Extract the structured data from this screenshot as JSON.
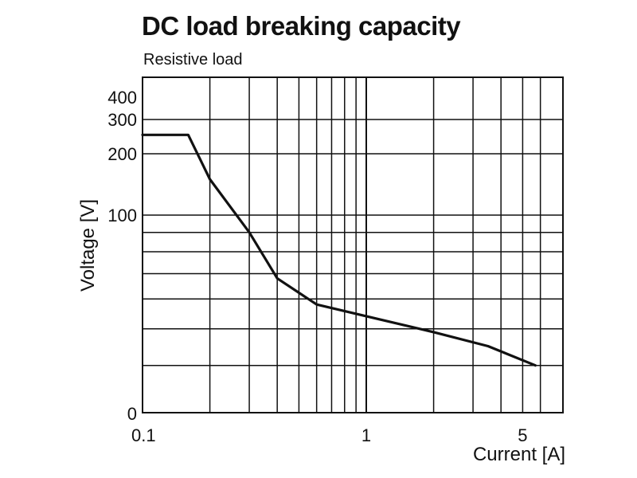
{
  "chart_data": {
    "type": "line",
    "title": "DC load breaking capacity",
    "subtitle": "Resistive load",
    "xlabel": "Current [A]",
    "ylabel": "Voltage [V]",
    "x_scale": "log",
    "xlim": [
      0.1,
      6.5
    ],
    "x_ticks": [
      {
        "value": 0.1,
        "label": "0.1"
      },
      {
        "value": 1,
        "label": "1"
      },
      {
        "value": 5,
        "label": "5"
      }
    ],
    "y_ticks": [
      {
        "label": "0"
      },
      {
        "label": "100"
      },
      {
        "label": "200"
      },
      {
        "label": "300"
      },
      {
        "label": "400"
      }
    ],
    "grid": true,
    "series": [
      {
        "color": "#111111",
        "points": [
          {
            "x": 0.1,
            "y": 250
          },
          {
            "x": 0.16,
            "y": 250
          },
          {
            "x": 0.2,
            "y": 150
          },
          {
            "x": 0.3,
            "y": 90
          },
          {
            "x": 0.4,
            "y": 68
          },
          {
            "x": 0.6,
            "y": 58
          },
          {
            "x": 1,
            "y": 54
          },
          {
            "x": 2,
            "y": 49
          },
          {
            "x": 3.5,
            "y": 45
          },
          {
            "x": 5.7,
            "y": 40
          }
        ]
      }
    ]
  }
}
